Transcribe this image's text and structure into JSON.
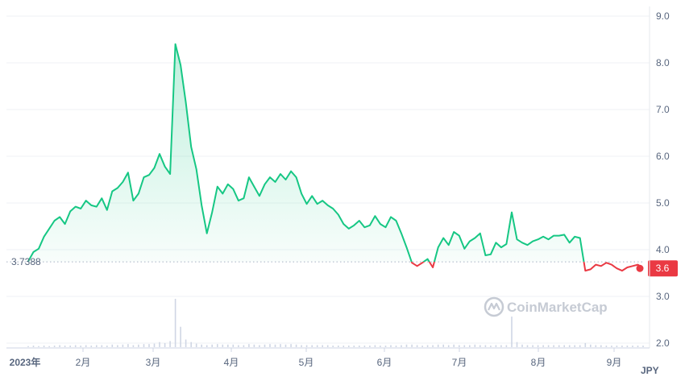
{
  "chart_data": {
    "type": "area",
    "currency": "JPY",
    "watermark": "CoinMarketCap",
    "y_ticks": [
      "9.0",
      "8.0",
      "7.0",
      "6.0",
      "5.0",
      "4.0",
      "3.0",
      "2.0"
    ],
    "ylim": [
      2.0,
      9.0
    ],
    "x_ticks": [
      "2023年",
      "2月",
      "3月",
      "4月",
      "5月",
      "6月",
      "7月",
      "8月",
      "9月"
    ],
    "reference_price": 3.7388,
    "reference_label": "3.7388",
    "current_price": 3.6,
    "current_label": "3.6",
    "colors": {
      "up": "#16c784",
      "down": "#ea3943",
      "grid": "#eff2f5",
      "axis_text": "#58667e",
      "volume": "#cfd6e4"
    },
    "series": [
      {
        "values": [
          3.75,
          3.95,
          4.02,
          4.28,
          4.45,
          4.62,
          4.7,
          4.55,
          4.82,
          4.92,
          4.88,
          5.05,
          4.95,
          4.92,
          5.1,
          4.85,
          5.25,
          5.32,
          5.45,
          5.65,
          5.05,
          5.2,
          5.55,
          5.6,
          5.75,
          6.05,
          5.78,
          5.62,
          8.4,
          7.95,
          7.15,
          6.2,
          5.72,
          4.95,
          4.35,
          4.8,
          5.35,
          5.2,
          5.4,
          5.3,
          5.05,
          5.1,
          5.55,
          5.35,
          5.15,
          5.4,
          5.55,
          5.45,
          5.62,
          5.5,
          5.68,
          5.55,
          5.2,
          4.98,
          5.15,
          4.98,
          5.05,
          4.95,
          4.88,
          4.75,
          4.55,
          4.45,
          4.52,
          4.62,
          4.48,
          4.52,
          4.72,
          4.55,
          4.48,
          4.7,
          4.62,
          4.35,
          4.05,
          3.72,
          3.65,
          3.72,
          3.8,
          3.62,
          4.05,
          4.25,
          4.1,
          4.38,
          4.3,
          4.02,
          4.18,
          4.25,
          4.35,
          3.88,
          3.9,
          4.15,
          4.05,
          4.12,
          4.8,
          4.22,
          4.15,
          4.1,
          4.18,
          4.22,
          4.28,
          4.22,
          4.3,
          4.3,
          4.32,
          4.15,
          4.28,
          4.25,
          3.55,
          3.58,
          3.68,
          3.65,
          3.72,
          3.68,
          3.6,
          3.55,
          3.62,
          3.65,
          3.68,
          3.6
        ]
      }
    ],
    "volume": [
      2,
      3,
      2,
      3,
      2,
      3,
      4,
      3,
      3,
      4,
      3,
      4,
      3,
      4,
      4,
      3,
      5,
      4,
      5,
      6,
      4,
      5,
      6,
      6,
      7,
      10,
      8,
      12,
      95,
      40,
      15,
      10,
      7,
      5,
      4,
      5,
      6,
      5,
      5,
      5,
      4,
      4,
      6,
      5,
      4,
      5,
      6,
      5,
      6,
      5,
      6,
      5,
      4,
      4,
      4,
      4,
      4,
      4,
      3,
      3,
      3,
      3,
      3,
      3,
      3,
      3,
      4,
      3,
      3,
      4,
      3,
      4,
      5,
      5,
      4,
      3,
      4,
      4,
      5,
      5,
      4,
      5,
      4,
      4,
      4,
      5,
      4,
      4,
      3,
      4,
      4,
      4,
      60,
      10,
      5,
      4,
      4,
      4,
      4,
      4,
      4,
      4,
      4,
      4,
      4,
      4,
      8,
      5,
      4,
      4,
      3,
      3,
      3,
      3,
      3,
      3,
      3,
      3
    ]
  }
}
